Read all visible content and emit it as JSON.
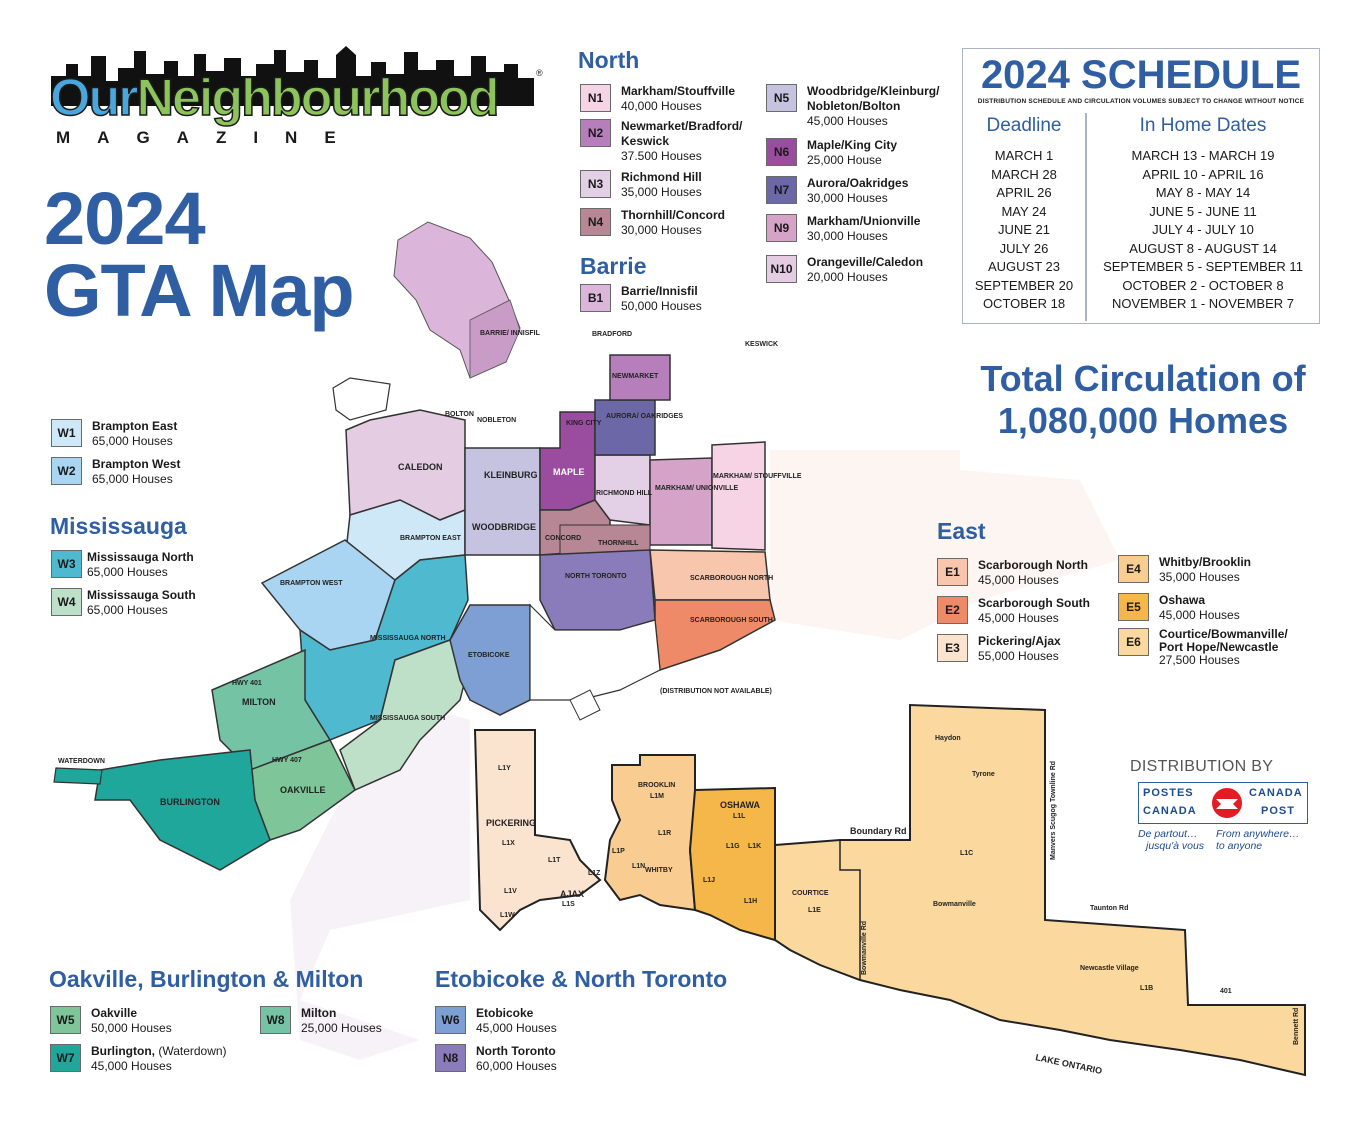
{
  "logo": {
    "word1": "Our",
    "word2": "Neighbourhood",
    "sub": "MAGAZINE",
    "mark": "®"
  },
  "title": {
    "line1": "2024",
    "line2": "GTA Map"
  },
  "sections": {
    "north": "North",
    "barrie": "Barrie",
    "mississauga": "Mississauga",
    "east": "East",
    "oakville": "Oakville, Burlington & Milton",
    "etobicoke": "Etobicoke & North Toronto"
  },
  "zones": {
    "N1": {
      "code": "N1",
      "name": "Markham/Stouffville",
      "houses": "40,000 Houses",
      "color": "#f6d4e6"
    },
    "N2": {
      "code": "N2",
      "name": "Newmarket/Bradford/ Keswick",
      "houses": "37.500 Houses",
      "color": "#b67fbc"
    },
    "N3": {
      "code": "N3",
      "name": "Richmond Hill",
      "houses": "35,000 Houses",
      "color": "#e3d0e6"
    },
    "N4": {
      "code": "N4",
      "name": "Thornhill/Concord",
      "houses": "30,000 Houses",
      "color": "#b78795"
    },
    "N5": {
      "code": "N5",
      "name": "Woodbridge/Kleinburg/ Nobleton/Bolton",
      "houses": "45,000 Houses",
      "color": "#c5c3e0"
    },
    "N6": {
      "code": "N6",
      "name": "Maple/King City",
      "houses": "25,000 House",
      "color": "#9a4d9e"
    },
    "N7": {
      "code": "N7",
      "name": "Aurora/Oakridges",
      "houses": "30,000 Houses",
      "color": "#6c68a8"
    },
    "N9": {
      "code": "N9",
      "name": "Markham/Unionville",
      "houses": "30,000 Houses",
      "color": "#d5a3c8"
    },
    "N10": {
      "code": "N10",
      "name": "Orangeville/Caledon",
      "houses": "20,000 Houses",
      "color": "#e4cde2"
    },
    "B1": {
      "code": "B1",
      "name": "Barrie/Innisfil",
      "houses": "50,000 Houses",
      "color": "#dcb6da"
    },
    "W1": {
      "code": "W1",
      "name": "Brampton East",
      "houses": "65,000 Houses",
      "color": "#cfe8f8"
    },
    "W2": {
      "code": "W2",
      "name": "Brampton West",
      "houses": "65,000 Houses",
      "color": "#a9d4f2"
    },
    "W3": {
      "code": "W3",
      "name": "Mississauga North",
      "houses": "65,000 Houses",
      "color": "#4fb9d0"
    },
    "W4": {
      "code": "W4",
      "name": "Mississauga South",
      "houses": "65,000 Houses",
      "color": "#bfe0c8"
    },
    "W5": {
      "code": "W5",
      "name": "Oakville",
      "houses": "50,000 Houses",
      "color": "#7fc59a"
    },
    "W7": {
      "code": "W7",
      "name": "Burlington,",
      "name_extra": " (Waterdown)",
      "houses": "45,000 Houses",
      "color": "#1fa79b"
    },
    "W8": {
      "code": "W8",
      "name": "Milton",
      "houses": "25,000 Houses",
      "color": "#74c3a5"
    },
    "W6": {
      "code": "W6",
      "name": "Etobicoke",
      "houses": "45,000 Houses",
      "color": "#7d9fd4"
    },
    "N8": {
      "code": "N8",
      "name": "North Toronto",
      "houses": "60,000 Houses",
      "color": "#8a7cbb"
    },
    "E1": {
      "code": "E1",
      "name": "Scarborough North",
      "houses": "45,000 Houses",
      "color": "#f7c6ac"
    },
    "E2": {
      "code": "E2",
      "name": "Scarborough South",
      "houses": "45,000 Houses",
      "color": "#ef8a68"
    },
    "E3": {
      "code": "E3",
      "name": "Pickering/Ajax",
      "houses": "55,000 Houses",
      "color": "#fbe4cf"
    },
    "E4": {
      "code": "E4",
      "name": "Whitby/Brooklin",
      "houses": "35,000 Houses",
      "color": "#f9cd92"
    },
    "E5": {
      "code": "E5",
      "name": "Oshawa",
      "houses": "45,000 Houses",
      "color": "#f6b74a"
    },
    "E6": {
      "code": "E6",
      "name": "Courtice/Bowmanville/ Port Hope/Newcastle",
      "houses": "27,500 Houses",
      "color": "#fbd99e"
    }
  },
  "schedule": {
    "title": "2024 SCHEDULE",
    "note": "DISTRIBUTION SCHEDULE AND CIRCULATION VOLUMES SUBJECT TO CHANGE WITHOUT NOTICE",
    "deadline_header": "Deadline",
    "inhome_header": "In Home Dates",
    "rows": [
      {
        "deadline": "MARCH 1",
        "inhome": "MARCH 13 - MARCH 19"
      },
      {
        "deadline": "MARCH 28",
        "inhome": "APRIL 10 - APRIL 16"
      },
      {
        "deadline": "APRIL 26",
        "inhome": "MAY 8 - MAY 14"
      },
      {
        "deadline": "MAY 24",
        "inhome": "JUNE 5 - JUNE 11"
      },
      {
        "deadline": "JUNE 21",
        "inhome": "JULY 4 - JULY 10"
      },
      {
        "deadline": "JULY 26",
        "inhome": "AUGUST 8 - AUGUST 14"
      },
      {
        "deadline": "AUGUST 23",
        "inhome": "SEPTEMBER 5 - SEPTEMBER 11"
      },
      {
        "deadline": "SEPTEMBER 20",
        "inhome": "OCTOBER 2 - OCTOBER 8"
      },
      {
        "deadline": "OCTOBER 18",
        "inhome": "NOVEMBER 1 - NOVEMBER 7"
      }
    ]
  },
  "total": {
    "line1": "Total Circulation of",
    "line2": "1,080,000 Homes"
  },
  "distribution": {
    "label": "DISTRIBUTION BY",
    "postes": "POSTES",
    "canada1": "CANADA",
    "canada2": "CANADA",
    "post": "POST",
    "fr_slogan_1": "De partout…",
    "fr_slogan_2": "jusqu'à vous",
    "en_slogan_1": "From anywhere…",
    "en_slogan_2": "to anyone",
    "color": "#e31b23"
  },
  "map_labels": {
    "caledon": "CALEDON",
    "brampton_east": "BRAMPTON EAST",
    "brampton_west": "BRAMPTON WEST",
    "mississauga_north": "MISSISSAUGA NORTH",
    "mississauga_south": "MISSISSAUGA SOUTH",
    "milton": "MILTON",
    "oakville": "OAKVILLE",
    "burlington": "BURLINGTON",
    "waterdown": "WATERDOWN",
    "etobicoke": "ETOBICOKE",
    "woodbridge": "WOODBRIDGE",
    "kleinburg": "KLEINBURG",
    "maple": "MAPLE",
    "king_city": "KING CITY",
    "aurora": "AURORA/ OAKRIDGES",
    "newmarket": "NEWMARKET",
    "richmond_hill": "RICHMOND HILL",
    "concord": "CONCORD",
    "thornhill": "THORNHILL",
    "markham_unionville": "MARKHAM/ UNIONVILLE",
    "markham_stouffville": "MARKHAM/ STOUFFVILLE",
    "north_toronto": "NORTH TORONTO",
    "scarborough_north": "SCARBOROUGH NORTH",
    "scarborough_south": "SCARBOROUGH SOUTH",
    "barrie": "BARRIE/ INNISFIL",
    "bradford": "BRADFORD",
    "keswick": "KESWICK",
    "bolton": "BOLTON",
    "nobleton": "NOBLETON",
    "hwy401": "HWY 401",
    "hwy407": "HWY 407",
    "pickering": "PICKERING",
    "ajax": "AJAX",
    "brooklin": "BROOKLIN",
    "whitby": "WHITBY",
    "oshawa": "OSHAWA",
    "courtice": "COURTICE",
    "bowmanville": "Bowmanville",
    "newcastle": "Newcastle Village",
    "haydon": "Haydon",
    "tyrone": "Tyrone",
    "boundary_rd": "Boundary Rd",
    "taunton_rd": "Taunton Rd",
    "manvers": "Manvers Scugog Townline Rd",
    "bowmanville_rd": "Bowmanville Rd",
    "bennett_rd": "Bennett Rd",
    "r401": "401",
    "lake": "LAKE ONTARIO",
    "dist_na": "(DISTRIBUTION NOT AVAILABLE)",
    "l1c": "L1C",
    "l1b": "L1B",
    "l1e": "L1E",
    "l1y": "L1Y",
    "l1x": "L1X",
    "l1m": "L1M",
    "l1r": "L1R",
    "l1l": "L1L",
    "l1g": "L1G",
    "l1k": "L1K",
    "l1j": "L1J",
    "l1h": "L1H",
    "l1t": "L1T",
    "l1z": "L1Z",
    "l1s": "L1S",
    "l1w": "L1W",
    "l1v": "L1V",
    "l1p": "L1P",
    "l1n": "L1N"
  }
}
